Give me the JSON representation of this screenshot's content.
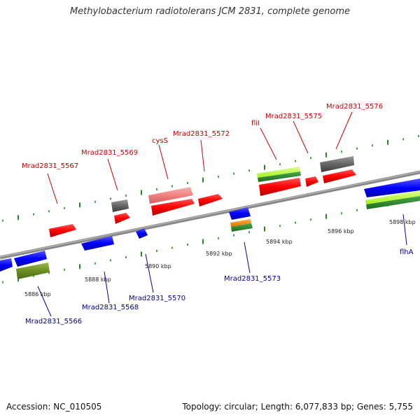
{
  "title": "Methylobacterium radiotolerans JCM 2831, complete genome",
  "footer": {
    "accession": "Accession: NC_010505",
    "summary": "Topology: circular; Length: 6,077,833 bp; Genes: 5,755"
  },
  "colors": {
    "forward_label": "#cc0000",
    "reverse_label": "#000099",
    "forward_gene": "#ff0000",
    "reverse_gene": "#0000ff",
    "pseudo_gene": "#666666",
    "rna_light": "#b3ff33",
    "rna_dark": "#2e8b2e",
    "misc_pink": "#f08080",
    "misc_olive": "#6b8e23",
    "misc_orange": "#ff8c00",
    "tick": "#228b22",
    "backbone": "#888888"
  },
  "scale_labels": [
    "5886 kbp",
    "5888 kbp",
    "5890 kbp",
    "5892 kbp",
    "5894 kbp",
    "5896 kbp",
    "5898 kbp"
  ],
  "forward_gene_labels": [
    "Mrad2831_5567",
    "Mrad2831_5569",
    "cysS",
    "Mrad2831_5572",
    "fliI",
    "Mrad2831_5575",
    "Mrad2831_5576"
  ],
  "reverse_gene_labels": [
    "Mrad2831_5566",
    "Mrad2831_5568",
    "Mrad2831_5570",
    "Mrad2831_5573",
    "flhA"
  ]
}
